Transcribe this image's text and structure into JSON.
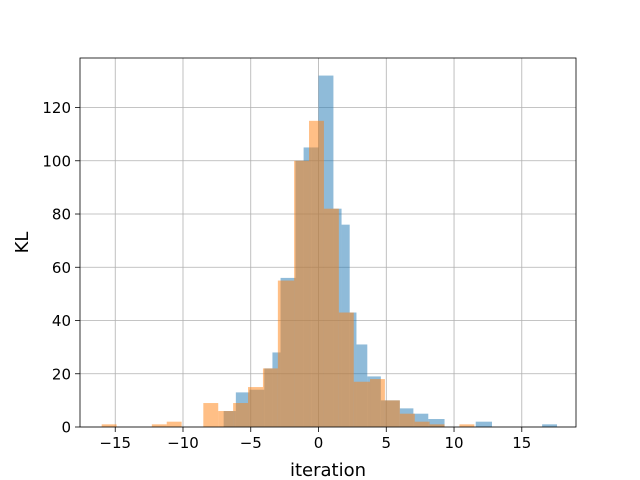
{
  "chart_data": {
    "type": "histogram",
    "title": "",
    "xlabel": "iteration",
    "ylabel": "KL",
    "xlim": [
      -17.6,
      19.0
    ],
    "ylim": [
      0,
      138.6
    ],
    "xticks": [
      -15,
      -10,
      -5,
      0,
      5,
      10,
      15
    ],
    "xtick_labels": [
      "−15",
      "−10",
      "−5",
      "0",
      "5",
      "10",
      "15"
    ],
    "yticks": [
      0,
      20,
      40,
      60,
      80,
      100,
      120
    ],
    "ytick_labels": [
      "0",
      "20",
      "40",
      "60",
      "80",
      "100",
      "120"
    ],
    "grid": true,
    "legend": false,
    "series": [
      {
        "color": "#1f77b4",
        "alpha": 0.5,
        "bins": [
          {
            "x0": -7.0,
            "x1": -6.1,
            "count": 6
          },
          {
            "x0": -6.1,
            "x1": -5.1,
            "count": 13
          },
          {
            "x0": -5.1,
            "x1": -4.0,
            "count": 14
          },
          {
            "x0": -4.0,
            "x1": -3.4,
            "count": 22
          },
          {
            "x0": -3.4,
            "x1": -2.8,
            "count": 28
          },
          {
            "x0": -2.8,
            "x1": -1.7,
            "count": 56
          },
          {
            "x0": -1.7,
            "x1": -1.1,
            "count": 100
          },
          {
            "x0": -1.1,
            "x1": -0.5,
            "count": 105
          },
          {
            "x0": -0.5,
            "x1": 0.0,
            "count": 105
          },
          {
            "x0": 0.0,
            "x1": 1.1,
            "count": 132
          },
          {
            "x0": 1.1,
            "x1": 1.7,
            "count": 82
          },
          {
            "x0": 1.7,
            "x1": 2.3,
            "count": 76
          },
          {
            "x0": 2.3,
            "x1": 2.8,
            "count": 43
          },
          {
            "x0": 2.8,
            "x1": 3.6,
            "count": 31
          },
          {
            "x0": 3.6,
            "x1": 4.6,
            "count": 19
          },
          {
            "x0": 4.6,
            "x1": 6.0,
            "count": 10
          },
          {
            "x0": 6.0,
            "x1": 7.0,
            "count": 7
          },
          {
            "x0": 7.0,
            "x1": 8.1,
            "count": 5
          },
          {
            "x0": 8.1,
            "x1": 9.3,
            "count": 3
          },
          {
            "x0": 11.6,
            "x1": 12.8,
            "count": 2
          },
          {
            "x0": 16.5,
            "x1": 17.6,
            "count": 1
          }
        ]
      },
      {
        "color": "#ff7f0e",
        "alpha": 0.5,
        "bins": [
          {
            "x0": -16.0,
            "x1": -14.9,
            "count": 1
          },
          {
            "x0": -12.3,
            "x1": -11.2,
            "count": 1
          },
          {
            "x0": -11.2,
            "x1": -10.1,
            "count": 2
          },
          {
            "x0": -8.5,
            "x1": -7.4,
            "count": 9
          },
          {
            "x0": -7.4,
            "x1": -6.3,
            "count": 6
          },
          {
            "x0": -6.3,
            "x1": -5.2,
            "count": 9
          },
          {
            "x0": -5.2,
            "x1": -4.1,
            "count": 15
          },
          {
            "x0": -4.1,
            "x1": -3.0,
            "count": 22
          },
          {
            "x0": -3.0,
            "x1": -1.8,
            "count": 55
          },
          {
            "x0": -1.8,
            "x1": -0.7,
            "count": 100
          },
          {
            "x0": -0.7,
            "x1": 0.4,
            "count": 115
          },
          {
            "x0": 0.4,
            "x1": 1.5,
            "count": 82
          },
          {
            "x0": 1.5,
            "x1": 2.6,
            "count": 43
          },
          {
            "x0": 2.6,
            "x1": 3.8,
            "count": 17
          },
          {
            "x0": 3.8,
            "x1": 4.9,
            "count": 18
          },
          {
            "x0": 4.9,
            "x1": 6.0,
            "count": 10
          },
          {
            "x0": 6.0,
            "x1": 7.1,
            "count": 5
          },
          {
            "x0": 7.1,
            "x1": 8.2,
            "count": 2
          },
          {
            "x0": 8.2,
            "x1": 9.3,
            "count": 1
          },
          {
            "x0": 10.4,
            "x1": 11.5,
            "count": 1
          }
        ]
      }
    ]
  }
}
